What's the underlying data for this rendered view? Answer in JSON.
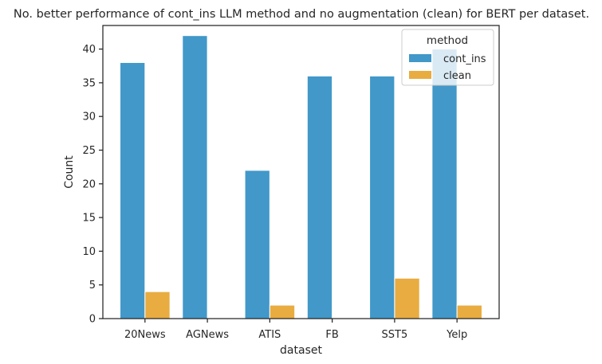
{
  "chart_data": {
    "type": "bar",
    "title": "No. better performance of cont_ins LLM method and no augmentation (clean) for BERT per dataset.",
    "xlabel": "dataset",
    "ylabel": "Count",
    "categories": [
      "20News",
      "AGNews",
      "ATIS",
      "FB",
      "SST5",
      "Yelp"
    ],
    "series": [
      {
        "name": "cont_ins",
        "values": [
          38,
          42,
          22,
          36,
          36,
          40
        ],
        "color": "#4198c9"
      },
      {
        "name": "clean",
        "values": [
          4,
          0,
          2,
          0,
          6,
          2
        ],
        "color": "#e8ac41"
      }
    ],
    "ylim": [
      0,
      43.5
    ],
    "yticks": [
      0,
      5,
      10,
      15,
      20,
      25,
      30,
      35,
      40
    ],
    "grid": false,
    "legend": {
      "title": "method",
      "position": "top-right"
    }
  }
}
